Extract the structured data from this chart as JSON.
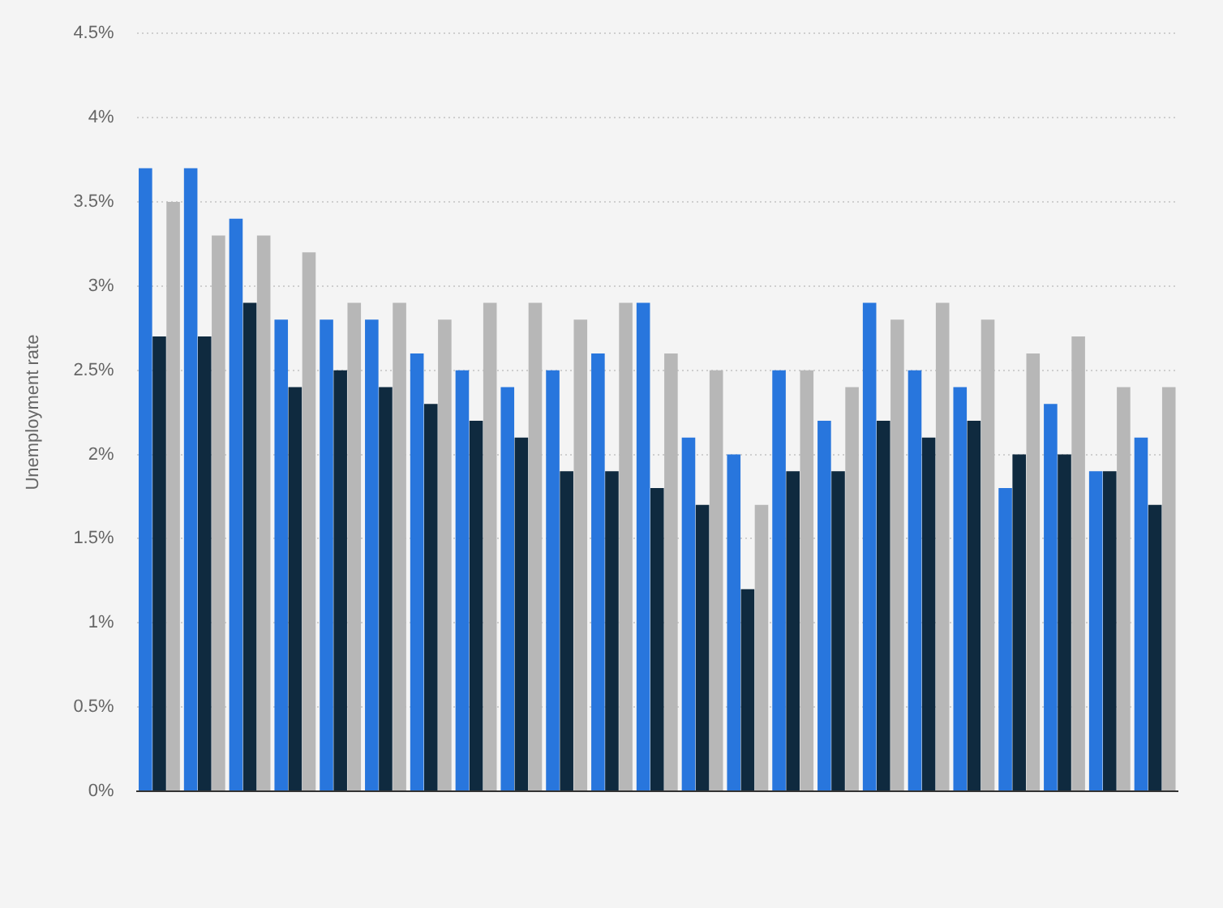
{
  "chart_data": {
    "type": "bar",
    "ylabel": "Unemployment rate",
    "categories": [
      null,
      null,
      null,
      null,
      null,
      null,
      null,
      null,
      null,
      null,
      null,
      null,
      null,
      null,
      null,
      null,
      null,
      null,
      null,
      null,
      null,
      null,
      null
    ],
    "series": [
      {
        "color": "#2876dd",
        "values": [
          3.7,
          3.7,
          3.4,
          2.8,
          2.8,
          2.8,
          2.6,
          2.5,
          2.4,
          2.5,
          2.6,
          2.9,
          2.1,
          2.0,
          2.5,
          2.2,
          2.9,
          2.5,
          2.4,
          1.8,
          2.3,
          1.9,
          2.1
        ]
      },
      {
        "color": "#0f2a3f",
        "values": [
          2.7,
          2.7,
          2.9,
          2.4,
          2.5,
          2.4,
          2.3,
          2.2,
          2.1,
          1.9,
          1.9,
          1.8,
          1.7,
          1.2,
          1.9,
          1.9,
          2.2,
          2.1,
          2.2,
          2.0,
          2.0,
          1.9,
          1.7
        ]
      },
      {
        "color": "#b7b7b7",
        "values": [
          3.5,
          3.3,
          3.3,
          3.2,
          2.9,
          2.9,
          2.8,
          2.9,
          2.9,
          2.8,
          2.9,
          2.6,
          2.5,
          1.7,
          2.5,
          2.4,
          2.8,
          2.9,
          2.8,
          2.6,
          2.7,
          2.4,
          2.4
        ]
      }
    ],
    "ylim": [
      0,
      4.5
    ],
    "yticks": [
      {
        "value": 0,
        "label": "0%"
      },
      {
        "value": 0.5,
        "label": "0.5%"
      },
      {
        "value": 1,
        "label": "1%"
      },
      {
        "value": 1.5,
        "label": "1.5%"
      },
      {
        "value": 2,
        "label": "2%"
      },
      {
        "value": 2.5,
        "label": "2.5%"
      },
      {
        "value": 3,
        "label": "3%"
      },
      {
        "value": 3.5,
        "label": "3.5%"
      },
      {
        "value": 4,
        "label": "4%"
      },
      {
        "value": 4.5,
        "label": "4.5%"
      }
    ],
    "grid": "y",
    "legend": false,
    "tick_labels": "y"
  }
}
